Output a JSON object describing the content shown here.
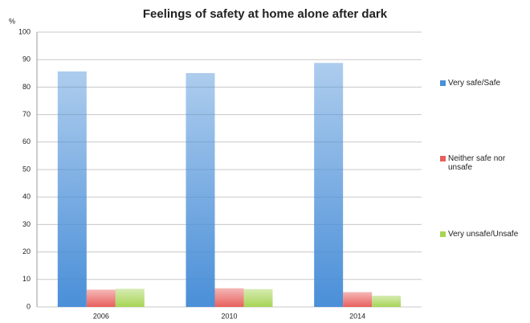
{
  "chart_data": {
    "type": "bar",
    "title": "Feelings of safety at home alone after dark",
    "y_label": "%",
    "categories": [
      "2006",
      "2010",
      "2014"
    ],
    "series": [
      {
        "name": "Very safe/Safe",
        "color": "#4a8fd8",
        "values": [
          85.7,
          85.1,
          88.8
        ]
      },
      {
        "name": "Neither safe nor unsafe",
        "color": "#e8605e",
        "values": [
          6.3,
          6.8,
          5.4
        ]
      },
      {
        "name": "Very unsafe/Unsafe",
        "color": "#a6d455",
        "values": [
          6.6,
          6.5,
          4.1
        ]
      }
    ],
    "ylim": [
      0,
      100
    ],
    "yticks": [
      0,
      10,
      20,
      30,
      40,
      50,
      60,
      70,
      80,
      90,
      100
    ],
    "grid": true,
    "legend": "right"
  }
}
